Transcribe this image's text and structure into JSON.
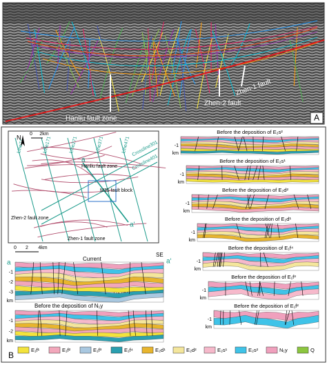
{
  "panel_a": {
    "label": "A",
    "annotations": [
      "Hanliu fault zone",
      "Zhen-2 fault",
      "Zhen-1 fault"
    ]
  },
  "panel_b": {
    "label": "B",
    "map": {
      "north": "N",
      "scale": [
        "0",
        "2km"
      ],
      "lines": [
        "Line71",
        "Line171",
        "Line271",
        "Line371",
        "Line471",
        "Crossline301",
        "Crossline401"
      ],
      "labels": [
        "Hanliu fault zone",
        "M35 fault block",
        "Zhen-2 fault zone",
        "Zhen-1 fault zone"
      ],
      "ends": [
        "a",
        "a'"
      ]
    },
    "section_current": {
      "scale": [
        "0",
        "2",
        "4km"
      ],
      "title": "Current",
      "direction": "SE",
      "ends": [
        "a",
        "a'"
      ],
      "depth_ticks": [
        "-1",
        "-2",
        "-3"
      ],
      "unit": "km",
      "fault": "Zhen-1 fault zone"
    },
    "section_ny": {
      "title": "Before the deposition of N₁y",
      "depth_ticks": [
        "-1",
        "-2"
      ],
      "unit": "km"
    },
    "stages": [
      {
        "title": "Before the deposition of E₂s²",
        "depth_ticks": [
          "-1"
        ],
        "unit": "km"
      },
      {
        "title": "Before the deposition of E₂s¹",
        "depth_ticks": [
          "-1"
        ],
        "unit": "km"
      },
      {
        "title": "Before the deposition of E₂d²",
        "depth_ticks": [
          "-1"
        ],
        "unit": "km"
      },
      {
        "title": "Before the deposition of E₂d¹",
        "depth_ticks": [
          "-1"
        ],
        "unit": "km"
      },
      {
        "title": "Before the deposition of E₁f⁴",
        "depth_ticks": [
          "-1"
        ],
        "unit": "km"
      },
      {
        "title": "Before the deposition of E₁f³",
        "depth_ticks": [
          "-1"
        ],
        "unit": "km"
      },
      {
        "title": "Before the deposition of E₁f²",
        "depth_ticks": [
          "-1"
        ],
        "unit": "km"
      }
    ],
    "legend": [
      {
        "label": "E₁f¹",
        "color": "#f3e33c"
      },
      {
        "label": "E₁f²",
        "color": "#f2a7bb"
      },
      {
        "label": "E₁f³",
        "color": "#a9c8e0"
      },
      {
        "label": "E₁f⁴",
        "color": "#2a9fb0"
      },
      {
        "label": "E₂d¹",
        "color": "#e8b52e"
      },
      {
        "label": "E₂d²",
        "color": "#f4e69c"
      },
      {
        "label": "E₂s¹",
        "color": "#f6b9cb"
      },
      {
        "label": "E₂s²",
        "color": "#3fc3e8"
      },
      {
        "label": "N₁y",
        "color": "#f0a0bd"
      },
      {
        "label": "Q",
        "color": "#8cc63f"
      }
    ]
  }
}
